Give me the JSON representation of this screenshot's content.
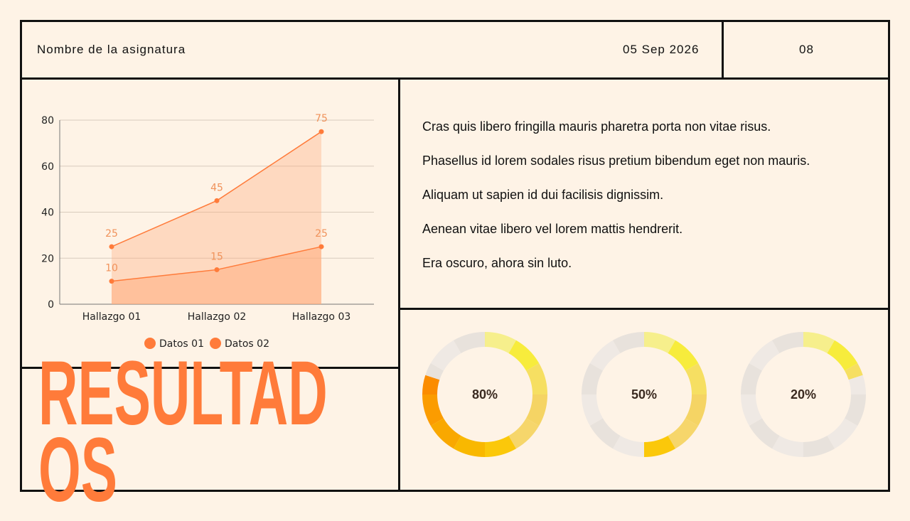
{
  "header": {
    "title": "Nombre de la asignatura",
    "date": "05 Sep 2026",
    "page": "08"
  },
  "paragraphs": [
    "Cras quis libero fringilla mauris pharetra porta non vitae risus.",
    "Phasellus id lorem sodales risus pretium bibendum eget non mauris.",
    "Aliquam ut sapien id dui facilisis dignissim.",
    "Aenean vitae libero vel lorem mattis hendrerit.",
    "Era oscuro, ahora sin luto."
  ],
  "title": "RESULTADOS",
  "colors": {
    "accent": "#ff7b3a",
    "background": "#fef3e6",
    "line": "#111111"
  },
  "chart_data": [
    {
      "type": "area",
      "categories": [
        "Hallazgo 01",
        "Hallazgo 02",
        "Hallazgo 03"
      ],
      "series": [
        {
          "name": "Datos 01",
          "values": [
            25,
            45,
            75
          ]
        },
        {
          "name": "Datos 02",
          "values": [
            10,
            15,
            25
          ]
        }
      ],
      "ylim": [
        0,
        80
      ],
      "yticks": [
        0,
        20,
        40,
        60,
        80
      ],
      "grid": true,
      "legend": "bottom",
      "data_labels": true
    },
    {
      "type": "pie",
      "subtype": "donut",
      "values": [
        80,
        50,
        20
      ],
      "labels": [
        "80%",
        "50%",
        "20%"
      ]
    }
  ]
}
